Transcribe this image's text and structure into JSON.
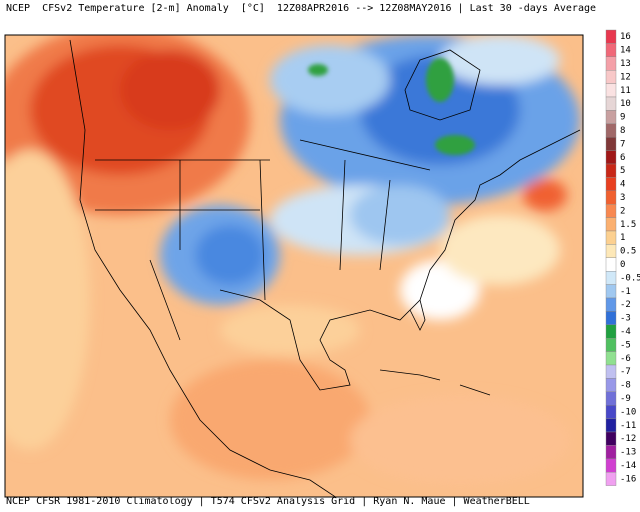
{
  "header": {
    "title": "NCEP  CFSv2 Temperature [2-m] Anomaly  [°C]  12Z08APR2016 --> 12Z08MAY2016 | Last 30 -days Average"
  },
  "footer": {
    "text": "NCEP CFSR 1981-2010 Climatology | T574 CFSv2 Analysis Grid | Ryan N. Maue | WeatherBELL"
  },
  "colorbar": [
    {
      "value": 16,
      "color": "#e8384f"
    },
    {
      "value": 14,
      "color": "#f06878"
    },
    {
      "value": 13,
      "color": "#f4a0a8"
    },
    {
      "value": 12,
      "color": "#f8c8c8"
    },
    {
      "value": 11,
      "color": "#fae2e2"
    },
    {
      "value": 10,
      "color": "#e6d6d6"
    },
    {
      "value": 9,
      "color": "#c8a0a0"
    },
    {
      "value": 8,
      "color": "#a06868"
    },
    {
      "value": 7,
      "color": "#803838"
    },
    {
      "value": 6,
      "color": "#a01818"
    },
    {
      "value": 5,
      "color": "#c82818"
    },
    {
      "value": 4,
      "color": "#e84020"
    },
    {
      "value": 3,
      "color": "#f06030"
    },
    {
      "value": 2,
      "color": "#f88850"
    },
    {
      "value": 1.5,
      "color": "#fbb070"
    },
    {
      "value": 1,
      "color": "#fcd090"
    },
    {
      "value": 0.5,
      "color": "#fde8b8"
    },
    {
      "value": 0,
      "color": "#ffffff"
    },
    {
      "value": -0.5,
      "color": "#d0e8f8"
    },
    {
      "value": -1,
      "color": "#a0c8f0"
    },
    {
      "value": -2,
      "color": "#6098e8"
    },
    {
      "value": -3,
      "color": "#3070d8"
    },
    {
      "value": -4,
      "color": "#20a040"
    },
    {
      "value": -5,
      "color": "#50c060"
    },
    {
      "value": -6,
      "color": "#90e090"
    },
    {
      "value": -7,
      "color": "#c0c0f0"
    },
    {
      "value": -8,
      "color": "#9898e8"
    },
    {
      "value": -9,
      "color": "#7070d8"
    },
    {
      "value": -10,
      "color": "#4848c8"
    },
    {
      "value": -11,
      "color": "#2020a0"
    },
    {
      "value": -12,
      "color": "#400060"
    },
    {
      "value": -13,
      "color": "#a020a0"
    },
    {
      "value": -14,
      "color": "#d040d0"
    },
    {
      "value": -16,
      "color": "#f0a0f0"
    }
  ]
}
